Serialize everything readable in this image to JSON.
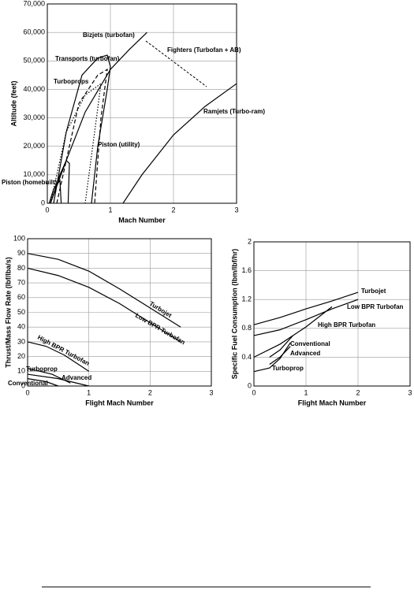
{
  "chart_data": [
    {
      "type": "line",
      "x_label": "Mach Number",
      "y_label": "Altitude (feet)",
      "xlim": [
        0,
        3
      ],
      "xticks": [
        0,
        1,
        2,
        3
      ],
      "ylim": [
        0,
        70000
      ],
      "yticks": [
        0,
        {
          "value": 10000,
          "label": "10,000"
        },
        {
          "value": 20000,
          "label": "20,000"
        },
        {
          "value": 30000,
          "label": "30,000"
        },
        {
          "value": 40000,
          "label": "40,000"
        },
        {
          "value": 50000,
          "label": "50,000"
        },
        {
          "value": 60000,
          "label": "60,000"
        },
        {
          "value": 70000,
          "label": "70,000"
        }
      ],
      "grid": true,
      "series": [
        {
          "name": "Bizjets (turbofan)",
          "color": "#000000",
          "style": "solid",
          "x": [
            0.1,
            0.3,
            0.55,
            0.8,
            0.95,
            1.0,
            0.95,
            0.8,
            0.7
          ],
          "values": [
            0,
            25000,
            45000,
            51000,
            52000,
            48000,
            40000,
            20000,
            0
          ]
        },
        {
          "name": "Transports (turbofan)",
          "color": "#000000",
          "style": "dashed",
          "x": [
            0.15,
            0.5,
            0.8,
            0.95,
            0.85,
            0.75
          ],
          "values": [
            0,
            35000,
            45000,
            47000,
            30000,
            0
          ]
        },
        {
          "name": "Turboprops",
          "color": "#000000",
          "style": "dotted",
          "x": [
            0.05,
            0.3,
            0.6,
            0.85,
            0.75,
            0.6
          ],
          "values": [
            0,
            25000,
            38000,
            42000,
            25000,
            0
          ]
        },
        {
          "name": "Piston (utility)",
          "color": "#000000",
          "style": "solid",
          "x": [
            0.05,
            0.2,
            0.3,
            0.35,
            0.33
          ],
          "values": [
            0,
            10000,
            15000,
            14000,
            0
          ]
        },
        {
          "name": "Piston (homebuilt)",
          "color": "#000000",
          "style": "solid",
          "x": [
            0.03,
            0.1,
            0.2,
            0.22
          ],
          "values": [
            0,
            5000,
            8000,
            0
          ]
        },
        {
          "name": "Fighters (Turbofan + AB)",
          "color": "#000000",
          "style": "solid",
          "x": [
            0.05,
            0.3,
            0.6,
            1.0,
            1.3,
            1.58
          ],
          "values": [
            0,
            15000,
            32000,
            47000,
            54000,
            60000
          ]
        },
        {
          "name": "Ramjets (Turbo-ram)",
          "color": "#000000",
          "style": "solid",
          "x": [
            1.2,
            1.5,
            2.0,
            2.5,
            3.0
          ],
          "values": [
            0,
            10000,
            24000,
            34000,
            42000
          ]
        }
      ]
    },
    {
      "type": "line",
      "x_label": "Flight Mach Number",
      "y_label": "Thrust/Mass Flow Rate (lbf/lba/s)",
      "xlim": [
        0,
        3
      ],
      "xticks": [
        0,
        1,
        2,
        3
      ],
      "ylim": [
        0,
        100
      ],
      "yticks": [
        0,
        10,
        20,
        30,
        40,
        50,
        60,
        70,
        80,
        90,
        100
      ],
      "grid": true,
      "series": [
        {
          "name": "Turbojet",
          "color": "#000000",
          "style": "solid",
          "x": [
            0,
            0.5,
            1.0,
            1.5,
            2.0,
            2.5
          ],
          "values": [
            90,
            86,
            78,
            66,
            53,
            40
          ]
        },
        {
          "name": "Low BPR Turbofan",
          "color": "#000000",
          "style": "solid",
          "x": [
            0,
            0.5,
            1.0,
            1.5,
            2.0,
            2.5
          ],
          "values": [
            80,
            75,
            67,
            56,
            43,
            30
          ]
        },
        {
          "name": "High BPR Turbofan",
          "color": "#000000",
          "style": "solid",
          "x": [
            0,
            0.3,
            0.6,
            1.0
          ],
          "values": [
            30,
            27,
            21,
            10
          ]
        },
        {
          "name": "Turboprop",
          "color": "#000000",
          "style": "solid",
          "x": [
            0,
            0.4,
            0.7
          ],
          "values": [
            12,
            8,
            2
          ]
        },
        {
          "name": "Advanced",
          "color": "#000000",
          "style": "solid",
          "x": [
            0,
            0.5,
            1.0
          ],
          "values": [
            8,
            5,
            0
          ]
        },
        {
          "name": "Conventional",
          "color": "#000000",
          "style": "solid",
          "x": [
            0,
            0.3,
            0.5
          ],
          "values": [
            5,
            3,
            0
          ]
        }
      ]
    },
    {
      "type": "line",
      "x_label": "Flight Mach Number",
      "y_label": "Specific Fuel Consumption (lbm/lbf/hr)",
      "xlim": [
        0,
        3
      ],
      "xticks": [
        0,
        1,
        2,
        3
      ],
      "ylim": [
        0,
        2
      ],
      "yticks": [
        0,
        0.4,
        0.8,
        1.2,
        1.6,
        2
      ],
      "grid": true,
      "series": [
        {
          "name": "Turbojet",
          "color": "#000000",
          "style": "solid",
          "x": [
            0,
            0.5,
            1.0,
            1.5,
            2.0
          ],
          "values": [
            0.85,
            0.95,
            1.07,
            1.18,
            1.3
          ]
        },
        {
          "name": "Low BPR Turbofan",
          "color": "#000000",
          "style": "solid",
          "x": [
            0,
            0.5,
            1.0,
            1.5,
            2.0
          ],
          "values": [
            0.7,
            0.78,
            0.92,
            1.07,
            1.2
          ]
        },
        {
          "name": "High BPR Turbofan",
          "color": "#000000",
          "style": "solid",
          "x": [
            0,
            0.5,
            1.0,
            1.5
          ],
          "values": [
            0.4,
            0.58,
            0.82,
            1.1
          ]
        },
        {
          "name": "Conventional",
          "color": "#000000",
          "style": "solid",
          "x": [
            0.3,
            0.5,
            0.75
          ],
          "values": [
            0.4,
            0.5,
            0.7
          ]
        },
        {
          "name": "Advanced",
          "color": "#000000",
          "style": "solid",
          "x": [
            0.3,
            0.5,
            0.7
          ],
          "values": [
            0.3,
            0.4,
            0.55
          ]
        },
        {
          "name": "Turboprop",
          "color": "#000000",
          "style": "solid",
          "x": [
            0,
            0.3,
            0.5,
            0.7
          ],
          "values": [
            0.2,
            0.25,
            0.38,
            0.6
          ]
        }
      ]
    }
  ]
}
